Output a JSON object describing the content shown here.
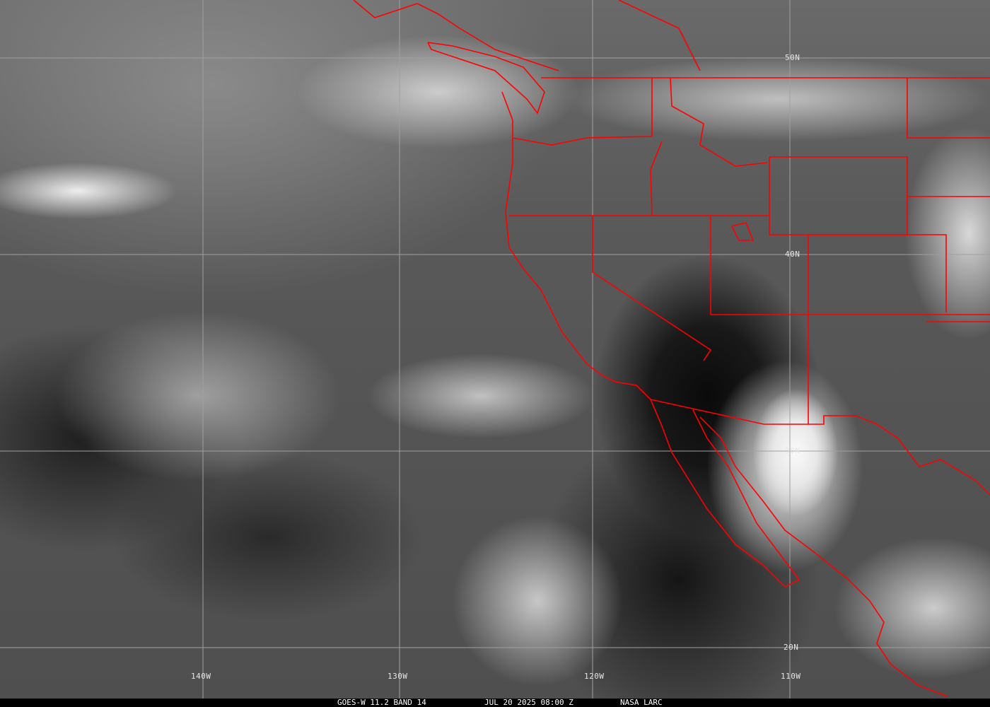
{
  "map": {
    "longitude_labels": [
      "140W",
      "130W",
      "120W",
      "110W"
    ],
    "latitude_labels": [
      "50N",
      "40N",
      "30N",
      "20N"
    ],
    "border_color": "#ff0000",
    "grid_color": "#a0a0a0",
    "imagery": "grayscale infrared satellite imagery"
  },
  "caption": {
    "satellite": "GOES-W 11.2 BAND 14",
    "datetime": "JUL 20 2025 08:00 Z",
    "source": "NASA LARC"
  }
}
